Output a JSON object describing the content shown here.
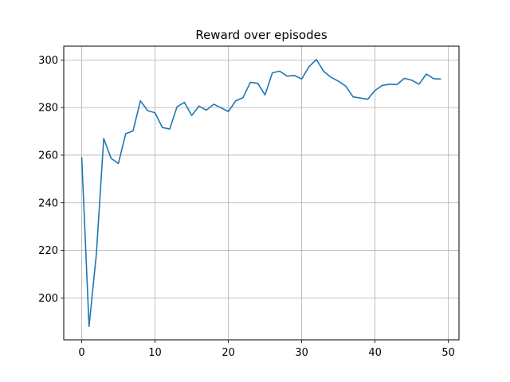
{
  "chart_data": {
    "type": "line",
    "title": "Reward over episodes",
    "xlabel": "",
    "ylabel": "",
    "xlim": [
      -2.45,
      51.45
    ],
    "ylim": [
      182.4,
      305.8
    ],
    "xticks": [
      0,
      10,
      20,
      30,
      40,
      50
    ],
    "yticks": [
      200,
      220,
      240,
      260,
      280,
      300
    ],
    "grid": true,
    "legend": "none",
    "series": [
      {
        "color": "#1f77b4",
        "x": [
          0,
          1,
          2,
          3,
          4,
          5,
          6,
          7,
          8,
          9,
          10,
          11,
          12,
          13,
          14,
          15,
          16,
          17,
          18,
          19,
          20,
          21,
          22,
          23,
          24,
          25,
          26,
          27,
          28,
          29,
          30,
          31,
          32,
          33,
          34,
          35,
          36,
          37,
          38,
          39,
          40,
          41,
          42,
          43,
          44,
          45,
          46,
          47,
          48,
          49
        ],
        "values": [
          259.2,
          188.0,
          218.5,
          267.0,
          258.7,
          256.5,
          269.0,
          270.2,
          282.8,
          278.7,
          277.8,
          271.6,
          271.0,
          280.3,
          282.2,
          276.7,
          280.6,
          278.9,
          281.4,
          279.9,
          278.3,
          282.8,
          284.2,
          290.6,
          290.2,
          285.3,
          294.6,
          295.3,
          293.2,
          293.5,
          292.0,
          297.2,
          300.2,
          295.2,
          292.7,
          291.1,
          289.0,
          284.5,
          284.0,
          283.5,
          287.2,
          289.3,
          289.8,
          289.7,
          292.3,
          291.5,
          289.8,
          294.1,
          292.1,
          292.0
        ]
      }
    ]
  }
}
